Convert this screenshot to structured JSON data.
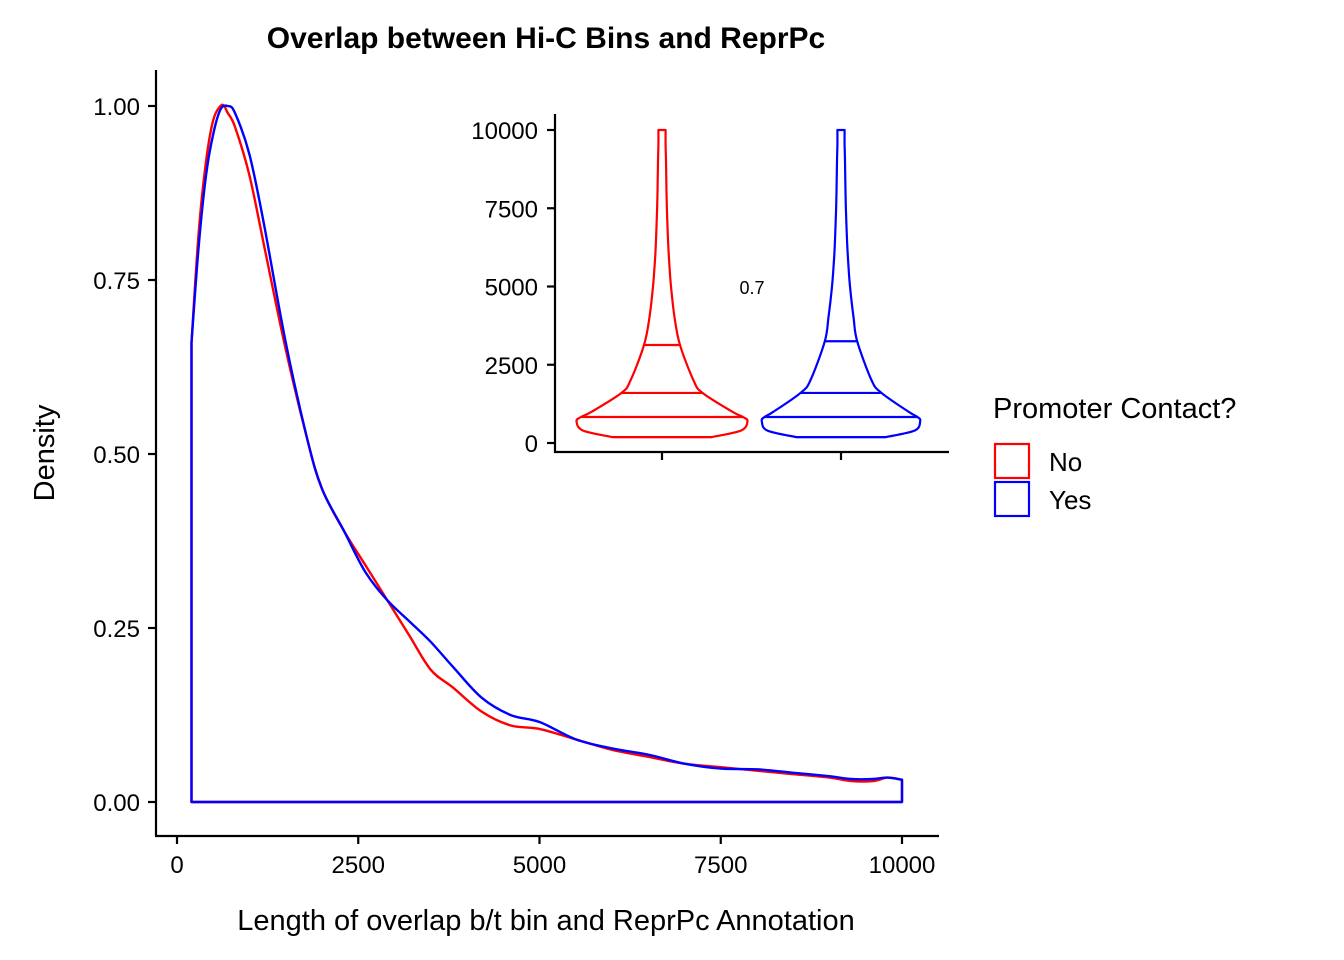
{
  "chart_data": {
    "type": "area",
    "title": "Overlap between Hi-C Bins and ReprPc",
    "xlabel": "Length of overlap b/t bin and ReprPc Annotation",
    "ylabel": "Density",
    "xlim": [
      -600,
      10400
    ],
    "ylim": [
      -0.05,
      1.05
    ],
    "x_ticks": [
      0,
      2500,
      5000,
      7500,
      10000
    ],
    "x_tick_labels": [
      "0",
      "2500",
      "5000",
      "7500",
      "10000"
    ],
    "y_ticks": [
      0,
      0.25,
      0.5,
      0.75,
      1.0
    ],
    "y_tick_labels": [
      "0.00",
      "0.25",
      "0.50",
      "0.75",
      "1.00"
    ],
    "grid": false,
    "legend": {
      "title": "Promoter Contact?",
      "placement": "right",
      "entries": [
        {
          "label": "No",
          "color": "#ff0000"
        },
        {
          "label": "Yes",
          "color": "#0000ff"
        }
      ]
    },
    "series": [
      {
        "name": "No",
        "color": "#ff0000",
        "x": [
          200,
          300,
          400,
          500,
          600,
          650,
          700,
          800,
          1000,
          1200,
          1500,
          1800,
          2000,
          2300,
          2600,
          2900,
          3200,
          3500,
          3800,
          4200,
          4600,
          5000,
          5500,
          6000,
          6500,
          7000,
          7500,
          8000,
          8500,
          9000,
          9300,
          9600,
          9800,
          10000
        ],
        "y": [
          0.66,
          0.82,
          0.92,
          0.98,
          1.0,
          1.0,
          0.99,
          0.97,
          0.9,
          0.8,
          0.65,
          0.52,
          0.45,
          0.39,
          0.34,
          0.29,
          0.24,
          0.19,
          0.165,
          0.13,
          0.11,
          0.105,
          0.09,
          0.075,
          0.065,
          0.055,
          0.05,
          0.045,
          0.04,
          0.035,
          0.03,
          0.03,
          0.035,
          0.032
        ]
      },
      {
        "name": "Yes",
        "color": "#0000ff",
        "x": [
          200,
          300,
          400,
          500,
          600,
          700,
          800,
          1000,
          1200,
          1500,
          1800,
          2000,
          2300,
          2600,
          2900,
          3200,
          3500,
          3800,
          4200,
          4600,
          5000,
          5500,
          6000,
          6500,
          7000,
          7500,
          8000,
          8500,
          9000,
          9300,
          9600,
          9800,
          10000
        ],
        "y": [
          0.66,
          0.8,
          0.9,
          0.96,
          0.995,
          1.0,
          0.99,
          0.93,
          0.83,
          0.66,
          0.52,
          0.45,
          0.39,
          0.33,
          0.29,
          0.26,
          0.23,
          0.195,
          0.15,
          0.125,
          0.115,
          0.09,
          0.077,
          0.068,
          0.055,
          0.048,
          0.047,
          0.042,
          0.037,
          0.033,
          0.033,
          0.035,
          0.032
        ]
      }
    ],
    "inset": {
      "type": "violin",
      "ylim": [
        -300,
        10500
      ],
      "y_ticks": [
        0,
        2500,
        5000,
        7500,
        10000
      ],
      "y_tick_labels": [
        "0",
        "2500",
        "5000",
        "7500",
        "10000"
      ],
      "annotation": "0.7",
      "groups": [
        {
          "name": "No",
          "color": "#ff0000",
          "quantiles": [
            190,
            830,
            1600,
            3130
          ],
          "profile_y": [
            190,
            400,
            700,
            830,
            1000,
            1600,
            2000,
            3130,
            4000,
            5000,
            6000,
            7000,
            8000,
            9000,
            9500,
            10000
          ],
          "profile_halfwidth": [
            0.55,
            0.88,
            0.95,
            0.9,
            0.78,
            0.45,
            0.35,
            0.2,
            0.14,
            0.1,
            0.075,
            0.06,
            0.05,
            0.045,
            0.04,
            0.04
          ]
        },
        {
          "name": "Yes",
          "color": "#0000ff",
          "quantiles": [
            190,
            830,
            1600,
            3250
          ],
          "profile_y": [
            190,
            400,
            700,
            830,
            1000,
            1600,
            2000,
            3250,
            4000,
            5000,
            6000,
            7000,
            8000,
            9000,
            9500,
            10000
          ],
          "profile_halfwidth": [
            0.5,
            0.82,
            0.88,
            0.85,
            0.75,
            0.45,
            0.34,
            0.18,
            0.14,
            0.1,
            0.075,
            0.06,
            0.05,
            0.045,
            0.04,
            0.04
          ]
        }
      ]
    }
  }
}
